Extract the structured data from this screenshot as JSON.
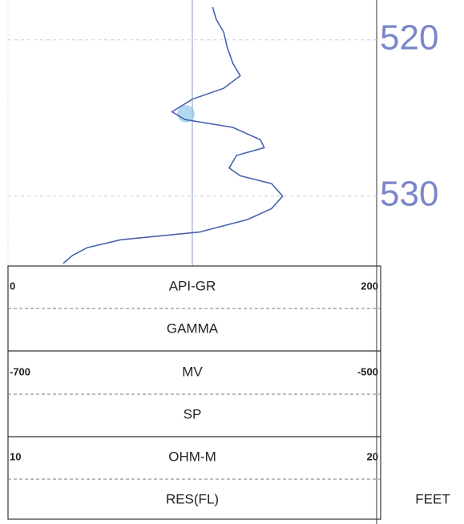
{
  "chart_data": {
    "type": "line",
    "x": [
      517.9,
      518.7,
      519.5,
      520.5,
      521.5,
      522.3,
      523.1,
      523.8,
      524.6,
      525.1,
      525.6,
      526.4,
      526.9,
      527.4,
      528.2,
      528.7,
      529.2,
      530.0,
      530.8,
      531.5,
      532.3,
      532.8,
      533.3,
      533.8,
      534.3
    ],
    "series": [
      {
        "name": "GAMMA",
        "color": "#4a62b0",
        "values": [
          111,
          113,
          117,
          119,
          122,
          126,
          117,
          100,
          89,
          96,
          122,
          137,
          139,
          124,
          120,
          126,
          143,
          149,
          143,
          130,
          104,
          61,
          43,
          35,
          30
        ]
      }
    ],
    "xlim": [
      517.5,
      534.5
    ],
    "xticks": [
      520,
      530
    ],
    "ylim": [
      0,
      200
    ],
    "depth_unit": "FEET",
    "tracks": [
      {
        "unit": "API-GR",
        "name": "GAMMA"
      },
      {
        "scale": [
          -700,
          -500
        ],
        "unit": "MV",
        "name": "SP"
      },
      {
        "scale": [
          10,
          20
        ],
        "unit": "OHM-M",
        "name": "RES(FL)"
      }
    ]
  }
}
